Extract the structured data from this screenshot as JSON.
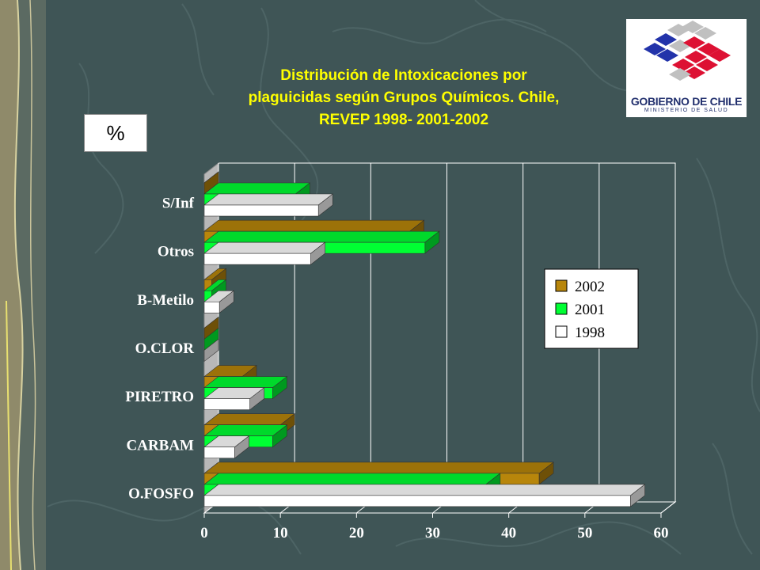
{
  "colors": {
    "background": "#3f5556",
    "series_2002": "#b8860b",
    "series_2001": "#00ff33",
    "series_1998": "#ffffff",
    "title": "#ffff00"
  },
  "logo": {
    "name": "GOBIERNO DE CHILE",
    "subtitle": "MINISTERIO DE SALUD"
  },
  "unit_label": "%",
  "chart_data": {
    "type": "bar",
    "orientation": "horizontal",
    "title": "Distribución de Intoxicaciones por plaguicidas según Grupos Químicos. Chile, REVEP 1998- 2001-2002",
    "title_lines": [
      "Distribución de Intoxicaciones por",
      "plaguicidas según Grupos Químicos. Chile,",
      "REVEP 1998- 2001-2002"
    ],
    "categories": [
      "S/Inf",
      "Otros",
      "B-Metilo",
      "O.CLOR",
      "PIRETRO",
      "CARBAM",
      "O.FOSFO"
    ],
    "series": [
      {
        "name": "2002",
        "values": [
          0,
          27,
          1,
          0,
          5,
          10,
          44
        ]
      },
      {
        "name": "2001",
        "values": [
          12,
          29,
          1,
          0,
          9,
          9,
          37
        ]
      },
      {
        "name": "1998",
        "values": [
          15,
          14,
          2,
          0,
          6,
          4,
          56
        ]
      }
    ],
    "xlim": [
      0,
      60
    ],
    "x_ticks": [
      "0",
      "10",
      "20",
      "30",
      "40",
      "50",
      "60"
    ],
    "xlabel": "",
    "ylabel": "",
    "grid": "vertical",
    "legend_position": "right",
    "three_d": true
  }
}
